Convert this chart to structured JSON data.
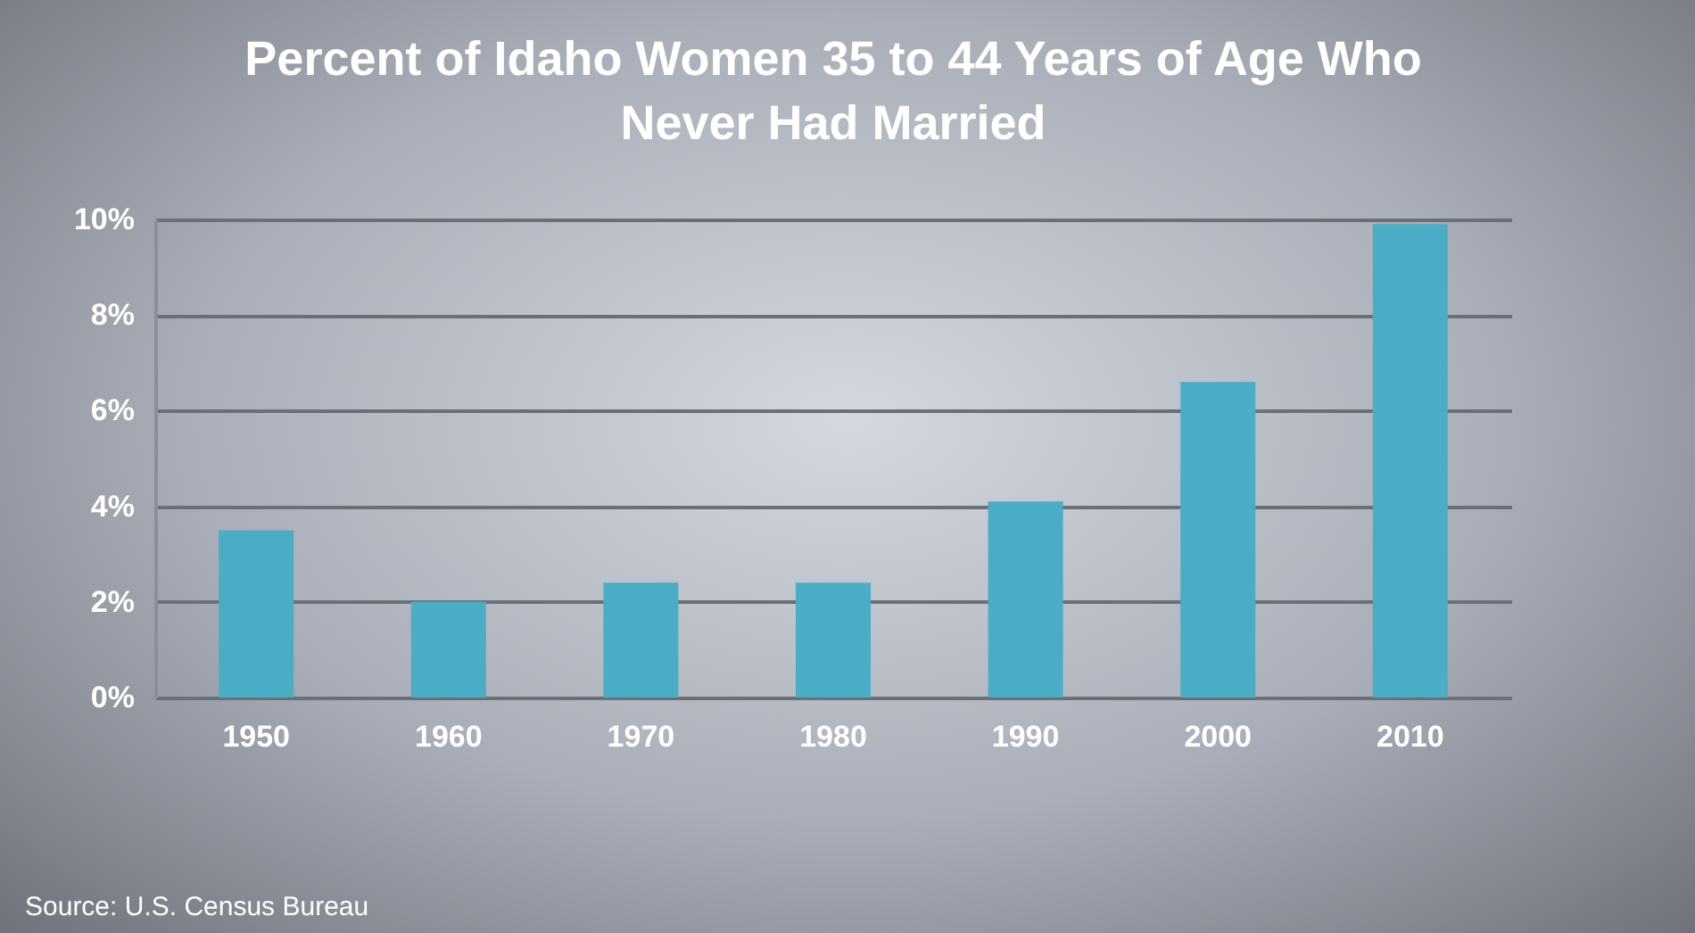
{
  "chart_data": {
    "type": "bar",
    "title": "Percent of Idaho Women 35 to 44 Years of Age Who Never Had Married",
    "categories": [
      "1950",
      "1960",
      "1970",
      "1980",
      "1990",
      "2000",
      "2010"
    ],
    "values": [
      3.5,
      2.0,
      2.4,
      2.4,
      4.1,
      6.6,
      9.9
    ],
    "color": "#4bacc6",
    "ylim": [
      0,
      10
    ],
    "yticks": [
      {
        "value": 0,
        "label": "0%"
      },
      {
        "value": 2,
        "label": "2%"
      },
      {
        "value": 4,
        "label": "4%"
      },
      {
        "value": 6,
        "label": "6%"
      },
      {
        "value": 8,
        "label": "8%"
      },
      {
        "value": 10,
        "label": "10%"
      }
    ],
    "grid": "y",
    "annotations": [
      "Source: U.S. Census Bureau"
    ]
  }
}
